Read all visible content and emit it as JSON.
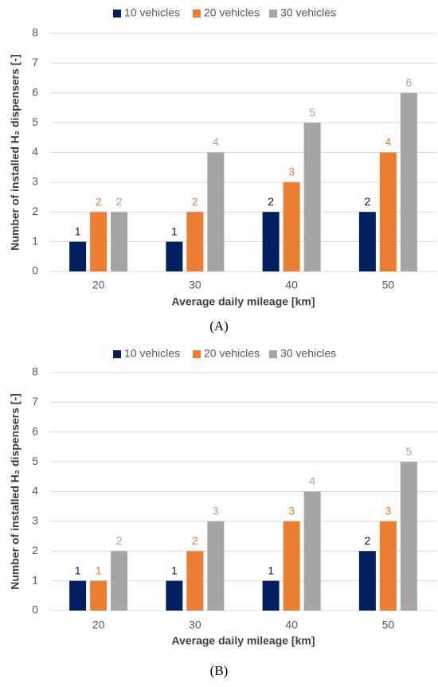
{
  "chart_data": [
    {
      "type": "bar",
      "caption": "(A)",
      "x_label": "Average daily mileage [km]",
      "y_label": "Number of installed H₂ dispensers [-]",
      "categories": [
        "20",
        "30",
        "40",
        "50"
      ],
      "series": [
        {
          "name": "10 vehicles",
          "color": "#002060",
          "values": [
            1,
            1,
            2,
            2
          ]
        },
        {
          "name": "20 vehicles",
          "color": "#ed7d31",
          "values": [
            2,
            2,
            3,
            4
          ]
        },
        {
          "name": "30 vehicles",
          "color": "#a5a5a5",
          "values": [
            2,
            4,
            5,
            6
          ]
        }
      ],
      "ylim": [
        0,
        8
      ],
      "yticks": [
        0,
        1,
        2,
        3,
        4,
        5,
        6,
        7,
        8
      ],
      "grid": true,
      "legend": "top"
    },
    {
      "type": "bar",
      "caption": "(B)",
      "x_label": "Average daily mileage [km]",
      "y_label": "Number of installed H₂ dispensers [-]",
      "categories": [
        "20",
        "30",
        "40",
        "50"
      ],
      "series": [
        {
          "name": "10 vehicles",
          "color": "#002060",
          "values": [
            1,
            1,
            1,
            2
          ]
        },
        {
          "name": "20 vehicles",
          "color": "#ed7d31",
          "values": [
            1,
            2,
            3,
            3
          ]
        },
        {
          "name": "30 vehicles",
          "color": "#a5a5a5",
          "values": [
            2,
            3,
            4,
            5
          ]
        }
      ],
      "ylim": [
        0,
        8
      ],
      "yticks": [
        0,
        1,
        2,
        3,
        4,
        5,
        6,
        7,
        8
      ],
      "grid": true,
      "legend": "top"
    }
  ]
}
